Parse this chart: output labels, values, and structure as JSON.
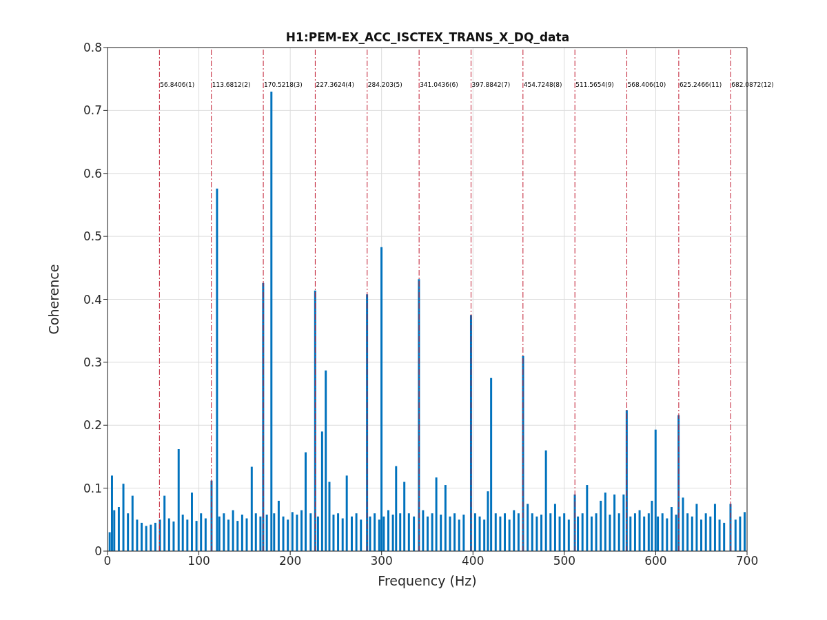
{
  "chart_data": {
    "type": "bar",
    "title": "H1:PEM-EX_ACC_ISCTEX_TRANS_X_DQ_data",
    "xlabel": "Frequency (Hz)",
    "ylabel": "Coherence",
    "x": [
      2.5,
      5,
      7.5,
      12.5,
      17.5,
      22.5,
      27.5,
      32.5,
      37.5,
      42.5,
      47.5,
      52.5,
      57.5,
      62.5,
      67.5,
      72.5,
      78,
      82.5,
      87.5,
      92.5,
      97.5,
      102.5,
      107.5,
      114,
      120,
      122.5,
      127.5,
      132.5,
      137.5,
      142.5,
      147.5,
      152.5,
      158,
      162.5,
      167.5,
      170.5,
      174.5,
      179.5,
      182.5,
      187.5,
      192.5,
      197.5,
      202.5,
      207.5,
      212.5,
      217,
      222.5,
      227.4,
      230.5,
      235,
      239,
      243,
      247.5,
      252.5,
      257.5,
      262,
      267.5,
      272.5,
      277.5,
      284.2,
      287.5,
      292.5,
      297.5,
      300,
      302.5,
      307.5,
      312.5,
      316,
      320.5,
      325,
      330,
      335.5,
      341,
      345.5,
      350.5,
      355.5,
      360,
      365,
      370,
      375,
      380,
      385,
      390,
      398,
      402.5,
      407.5,
      412.5,
      416.5,
      420,
      425,
      430,
      435,
      440,
      445,
      450,
      455,
      460,
      465,
      470,
      475,
      480,
      485,
      490,
      495,
      500,
      505,
      511.6,
      515,
      520,
      525,
      530,
      535,
      540,
      545,
      550,
      555,
      560,
      565,
      568.4,
      572.5,
      577.5,
      582.5,
      587.5,
      592.5,
      596,
      600,
      602.5,
      607.5,
      612.5,
      617.5,
      622.5,
      625.2,
      630,
      635,
      640,
      645,
      650,
      655,
      660,
      665,
      670,
      675,
      682,
      687.5,
      692.5,
      697.5
    ],
    "values": [
      0.03,
      0.12,
      0.065,
      0.07,
      0.107,
      0.06,
      0.088,
      0.05,
      0.045,
      0.04,
      0.042,
      0.045,
      0.05,
      0.088,
      0.052,
      0.047,
      0.162,
      0.058,
      0.05,
      0.093,
      0.048,
      0.06,
      0.052,
      0.112,
      0.576,
      0.055,
      0.06,
      0.05,
      0.065,
      0.048,
      0.058,
      0.052,
      0.134,
      0.06,
      0.055,
      0.426,
      0.058,
      0.73,
      0.06,
      0.08,
      0.055,
      0.05,
      0.062,
      0.058,
      0.065,
      0.157,
      0.06,
      0.414,
      0.055,
      0.19,
      0.287,
      0.11,
      0.058,
      0.06,
      0.052,
      0.12,
      0.055,
      0.06,
      0.05,
      0.408,
      0.055,
      0.06,
      0.05,
      0.483,
      0.055,
      0.065,
      0.058,
      0.135,
      0.06,
      0.11,
      0.06,
      0.055,
      0.432,
      0.065,
      0.055,
      0.06,
      0.117,
      0.058,
      0.105,
      0.055,
      0.06,
      0.05,
      0.058,
      0.375,
      0.06,
      0.055,
      0.05,
      0.095,
      0.275,
      0.06,
      0.055,
      0.06,
      0.05,
      0.065,
      0.06,
      0.31,
      0.075,
      0.06,
      0.055,
      0.058,
      0.16,
      0.06,
      0.075,
      0.055,
      0.06,
      0.05,
      0.09,
      0.055,
      0.06,
      0.105,
      0.055,
      0.06,
      0.08,
      0.093,
      0.058,
      0.09,
      0.06,
      0.09,
      0.224,
      0.055,
      0.06,
      0.065,
      0.055,
      0.06,
      0.08,
      0.193,
      0.055,
      0.06,
      0.052,
      0.07,
      0.058,
      0.216,
      0.085,
      0.06,
      0.055,
      0.075,
      0.05,
      0.06,
      0.055,
      0.075,
      0.05,
      0.045,
      0.075,
      0.05,
      0.055,
      0.062
    ],
    "color": "#0072bd",
    "xlim": [
      0,
      700
    ],
    "xticks": [
      0,
      100,
      200,
      300,
      400,
      500,
      600,
      700
    ],
    "ylim": [
      0,
      0.8
    ],
    "yticks": [
      0,
      0.1,
      0.2,
      0.3,
      0.4,
      0.5,
      0.6,
      0.7,
      0.8
    ],
    "grid": true,
    "ref_lines": [
      {
        "axis": "x",
        "value": 56.8406,
        "label": "56.8406(1)",
        "color": "#c0192f",
        "line_style": "dashdot"
      },
      {
        "axis": "x",
        "value": 113.6812,
        "label": "113.6812(2)",
        "color": "#c0192f",
        "line_style": "dashdot"
      },
      {
        "axis": "x",
        "value": 170.5218,
        "label": "170.5218(3)",
        "color": "#c0192f",
        "line_style": "dashdot"
      },
      {
        "axis": "x",
        "value": 227.3624,
        "label": "227.3624(4)",
        "color": "#c0192f",
        "line_style": "dashdot"
      },
      {
        "axis": "x",
        "value": 284.203,
        "label": "284.203(5)",
        "color": "#c0192f",
        "line_style": "dashdot"
      },
      {
        "axis": "x",
        "value": 341.0436,
        "label": "341.0436(6)",
        "color": "#c0192f",
        "line_style": "dashdot"
      },
      {
        "axis": "x",
        "value": 397.8842,
        "label": "397.8842(7)",
        "color": "#c0192f",
        "line_style": "dashdot"
      },
      {
        "axis": "x",
        "value": 454.7248,
        "label": "454.7248(8)",
        "color": "#c0192f",
        "line_style": "dashdot"
      },
      {
        "axis": "x",
        "value": 511.5654,
        "label": "511.5654(9)",
        "color": "#c0192f",
        "line_style": "dashdot"
      },
      {
        "axis": "x",
        "value": 568.406,
        "label": "568.406(10)",
        "color": "#c0192f",
        "line_style": "dashdot"
      },
      {
        "axis": "x",
        "value": 625.2466,
        "label": "625.2466(11)",
        "color": "#c0192f",
        "line_style": "dashdot"
      },
      {
        "axis": "x",
        "value": 682.0872,
        "label": "682.0872(12)",
        "color": "#c0192f",
        "line_style": "dashdot"
      }
    ]
  }
}
